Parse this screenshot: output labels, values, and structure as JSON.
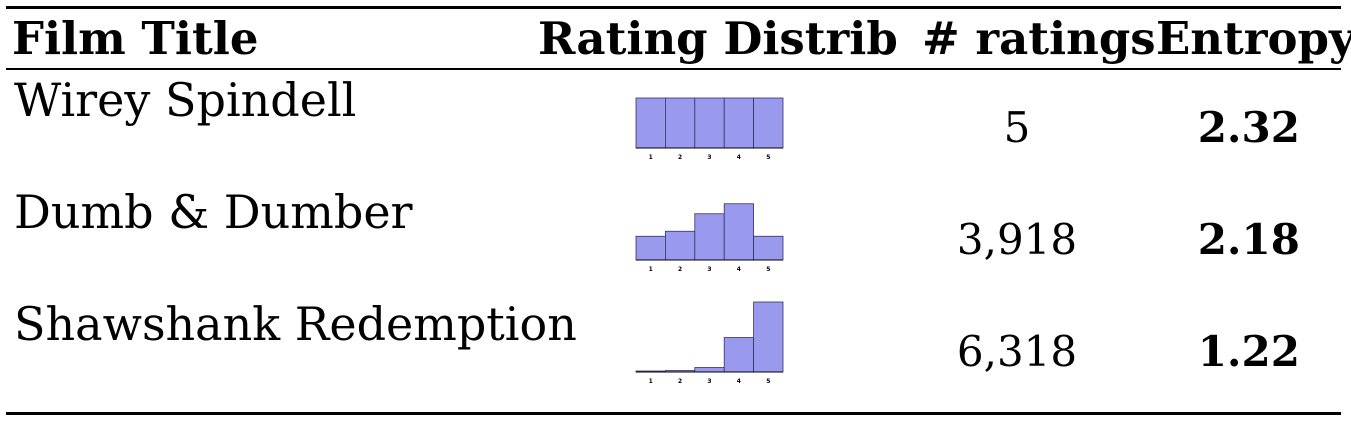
{
  "header": {
    "film_title": "Film Title",
    "rating_distrib": "Rating Distrib",
    "num_ratings": "# ratings",
    "entropy": "Entropy"
  },
  "rows": [
    {
      "title": "Wirey Spindell",
      "ratings": "5",
      "entropy": "2.32",
      "distribution": [
        0.2,
        0.2,
        0.2,
        0.2,
        0.2
      ]
    },
    {
      "title": "Dumb & Dumber",
      "ratings": "3,918",
      "entropy": "2.18",
      "distribution": [
        0.095,
        0.115,
        0.185,
        0.225,
        0.095
      ]
    },
    {
      "title": "Shawshank Redemption",
      "ratings": "6,318",
      "entropy": "1.22",
      "distribution": [
        0.004,
        0.006,
        0.018,
        0.138,
        0.28
      ]
    }
  ],
  "hist_bins": [
    "1",
    "2",
    "3",
    "4",
    "5"
  ],
  "colors": {
    "bar_fill": "#9999ee",
    "bar_stroke": "#333366"
  }
}
